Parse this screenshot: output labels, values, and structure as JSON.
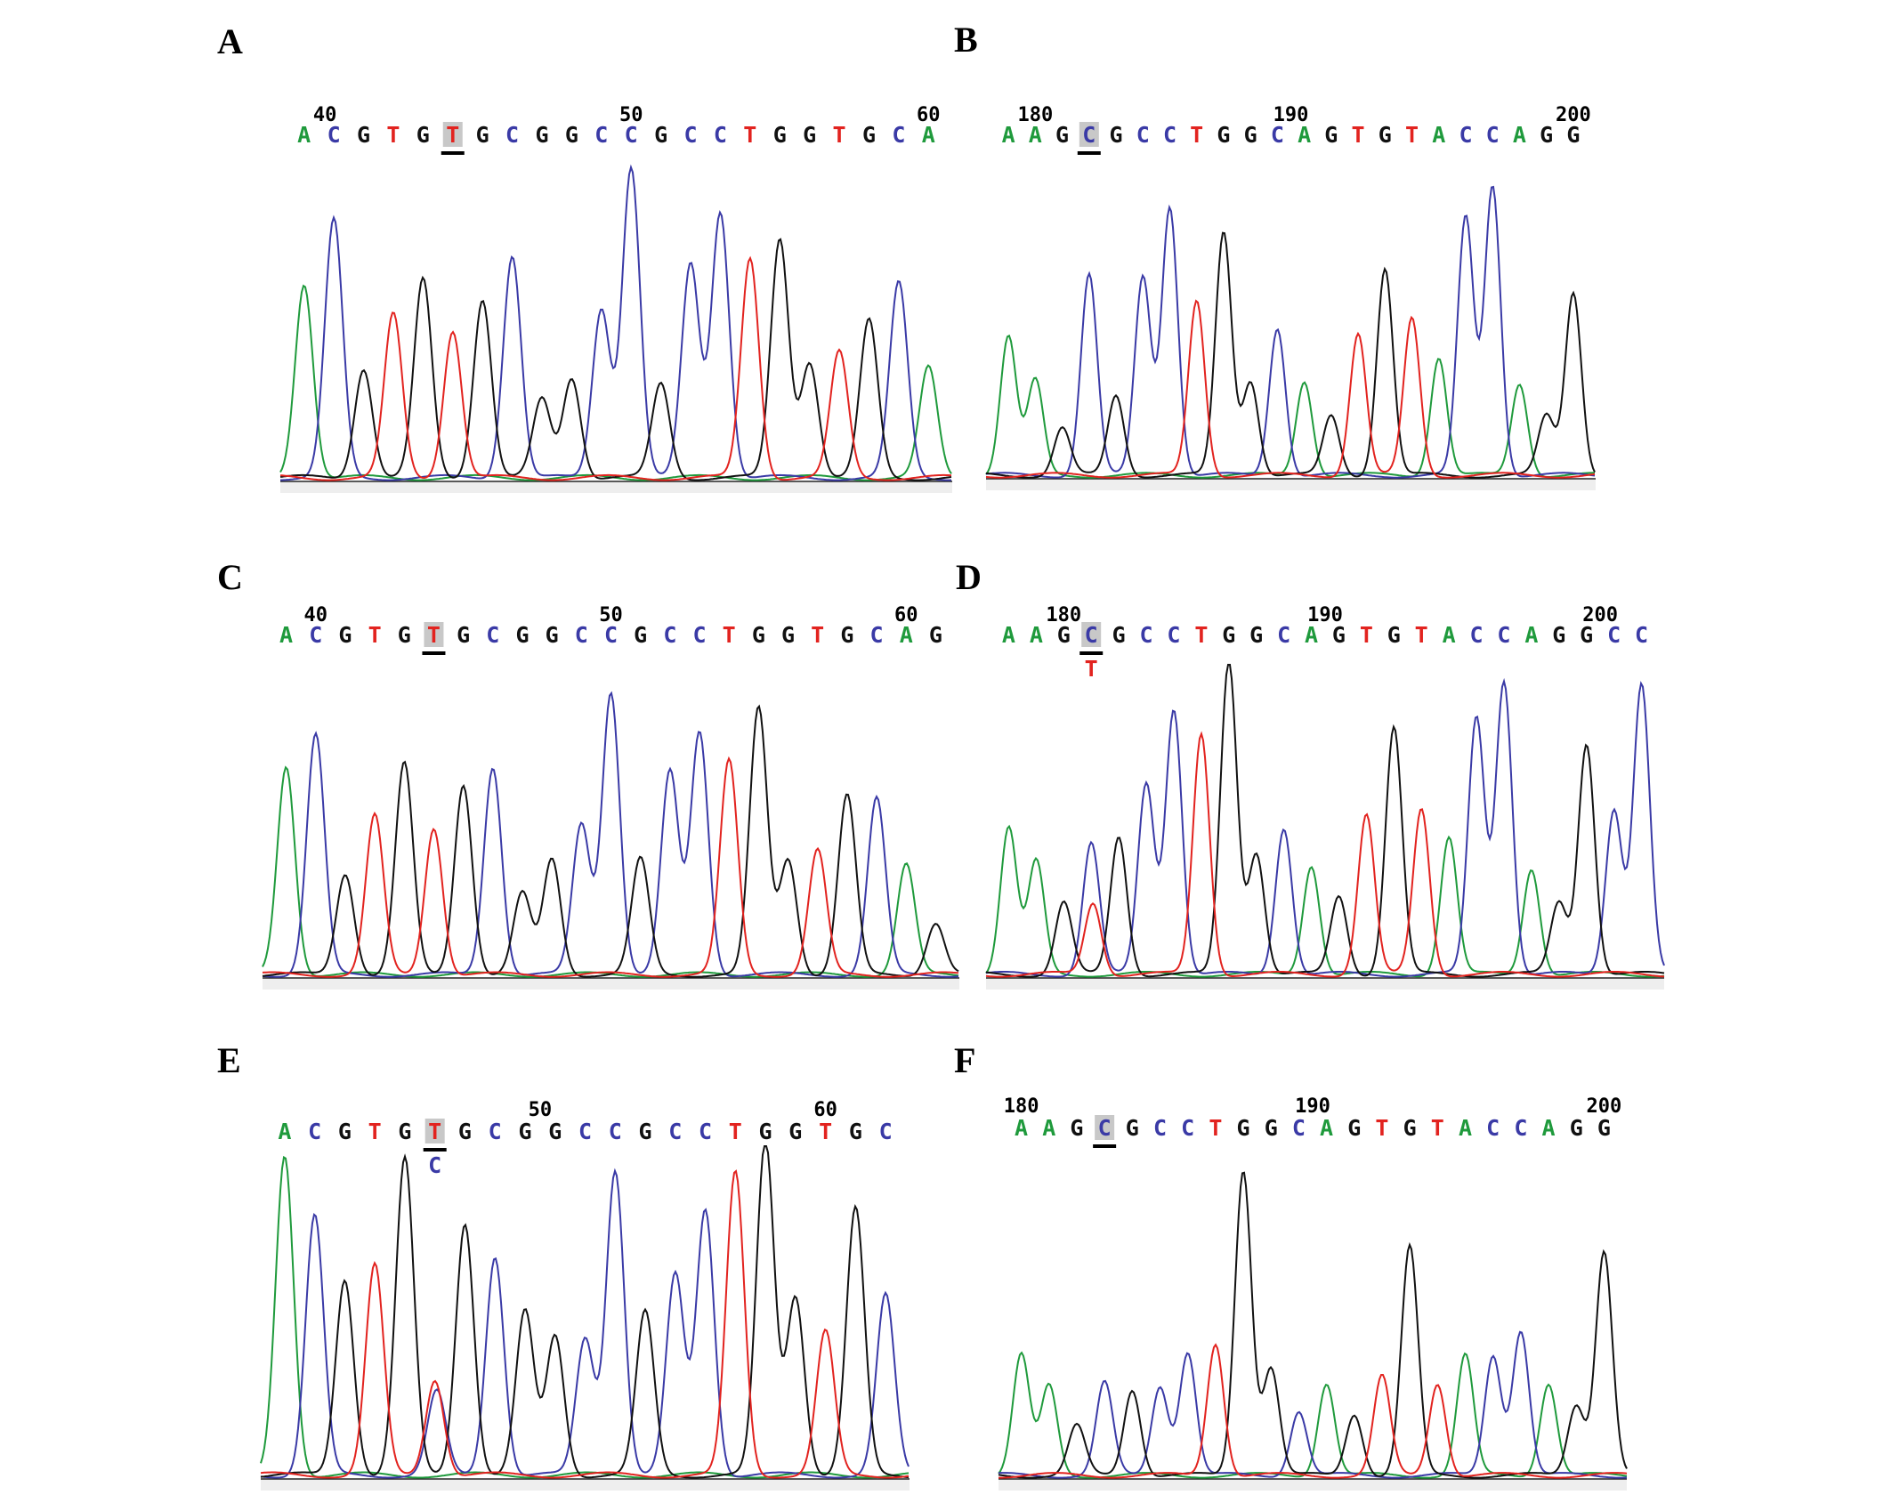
{
  "colors": {
    "A": "#1f9a3c",
    "C": "#3a3aa6",
    "G": "#111111",
    "T": "#e2231f",
    "highlight": "#c8c8c8"
  },
  "chart_data": [
    {
      "type": "chromatogram",
      "panel": "A",
      "sequence": "ACGTGTGCGGCCGCCTGGTGCA",
      "ticks": [
        {
          "label": "40",
          "index": 0.7
        },
        {
          "label": "50",
          "index": 11
        },
        {
          "label": "60",
          "index": 21
        }
      ],
      "highlight_index": 5,
      "secondary_call": null,
      "peaks": [
        62,
        82,
        35,
        52,
        63,
        47,
        57,
        71,
        25,
        32,
        54,
        99,
        30,
        68,
        85,
        70,
        76,
        37,
        40,
        50,
        62,
        35
      ]
    },
    {
      "type": "chromatogram",
      "panel": "B",
      "sequence": "AAGCGCCTGGCAGTGTACCAGG",
      "ticks": [
        {
          "label": "180",
          "index": 1
        },
        {
          "label": "190",
          "index": 10.5
        },
        {
          "label": "200",
          "index": 21
        }
      ],
      "highlight_index": 3,
      "secondary_call": null,
      "peaks": [
        47,
        32,
        16,
        68,
        27,
        67,
        91,
        59,
        82,
        32,
        50,
        32,
        20,
        48,
        70,
        53,
        40,
        87,
        98,
        31,
        20,
        62
      ]
    },
    {
      "type": "chromatogram",
      "panel": "C",
      "sequence": "ACGTGTGCGGCCGCCTGGTGCAG",
      "ticks": [
        {
          "label": "40",
          "index": 1
        },
        {
          "label": "50",
          "index": 11
        },
        {
          "label": "60",
          "index": 21
        }
      ],
      "highlight_index": 5,
      "secondary_call": null,
      "peaks": [
        72,
        83,
        35,
        55,
        73,
        51,
        66,
        72,
        28,
        40,
        52,
        98,
        40,
        70,
        84,
        74,
        92,
        40,
        43,
        62,
        61,
        38,
        18
      ]
    },
    {
      "type": "chromatogram",
      "panel": "D",
      "sequence": "AAGCGCCTGGCAGTGTACCAGGCC",
      "ticks": [
        {
          "label": "180",
          "index": 2
        },
        {
          "label": "190",
          "index": 11.5
        },
        {
          "label": "200",
          "index": 21.5
        }
      ],
      "highlight_index": 3,
      "secondary_call": {
        "base": "T",
        "peak": 23
      },
      "peaks": [
        47,
        36,
        23,
        42,
        44,
        61,
        85,
        77,
        100,
        39,
        47,
        35,
        25,
        51,
        79,
        53,
        44,
        82,
        94,
        34,
        23,
        74,
        53,
        93
      ]
    },
    {
      "type": "chromatogram",
      "panel": "E",
      "sequence": "ACGTGTGCGGCCGCCTGGTGC",
      "ticks": [
        {
          "label": "50",
          "index": 8.5
        },
        {
          "label": "60",
          "index": 18
        }
      ],
      "highlight_index": 5,
      "secondary_call": {
        "base": "C",
        "peak": 25
      },
      "peaks": [
        96,
        78,
        59,
        63,
        95,
        29,
        76,
        66,
        49,
        42,
        41,
        92,
        49,
        60,
        80,
        91,
        100,
        54,
        43,
        80,
        54
      ]
    },
    {
      "type": "chromatogram",
      "panel": "F",
      "sequence": "AAGCGCCTGGCAGTGTACCAGG",
      "ticks": [
        {
          "label": "180",
          "index": 0
        },
        {
          "label": "190",
          "index": 10.5
        },
        {
          "label": "200",
          "index": 21
        }
      ],
      "highlight_index": 3,
      "secondary_call": null,
      "peaks": [
        39,
        29,
        16,
        30,
        28,
        29,
        40,
        43,
        99,
        35,
        21,
        30,
        20,
        32,
        74,
        30,
        39,
        39,
        47,
        30,
        23,
        73
      ]
    }
  ]
}
